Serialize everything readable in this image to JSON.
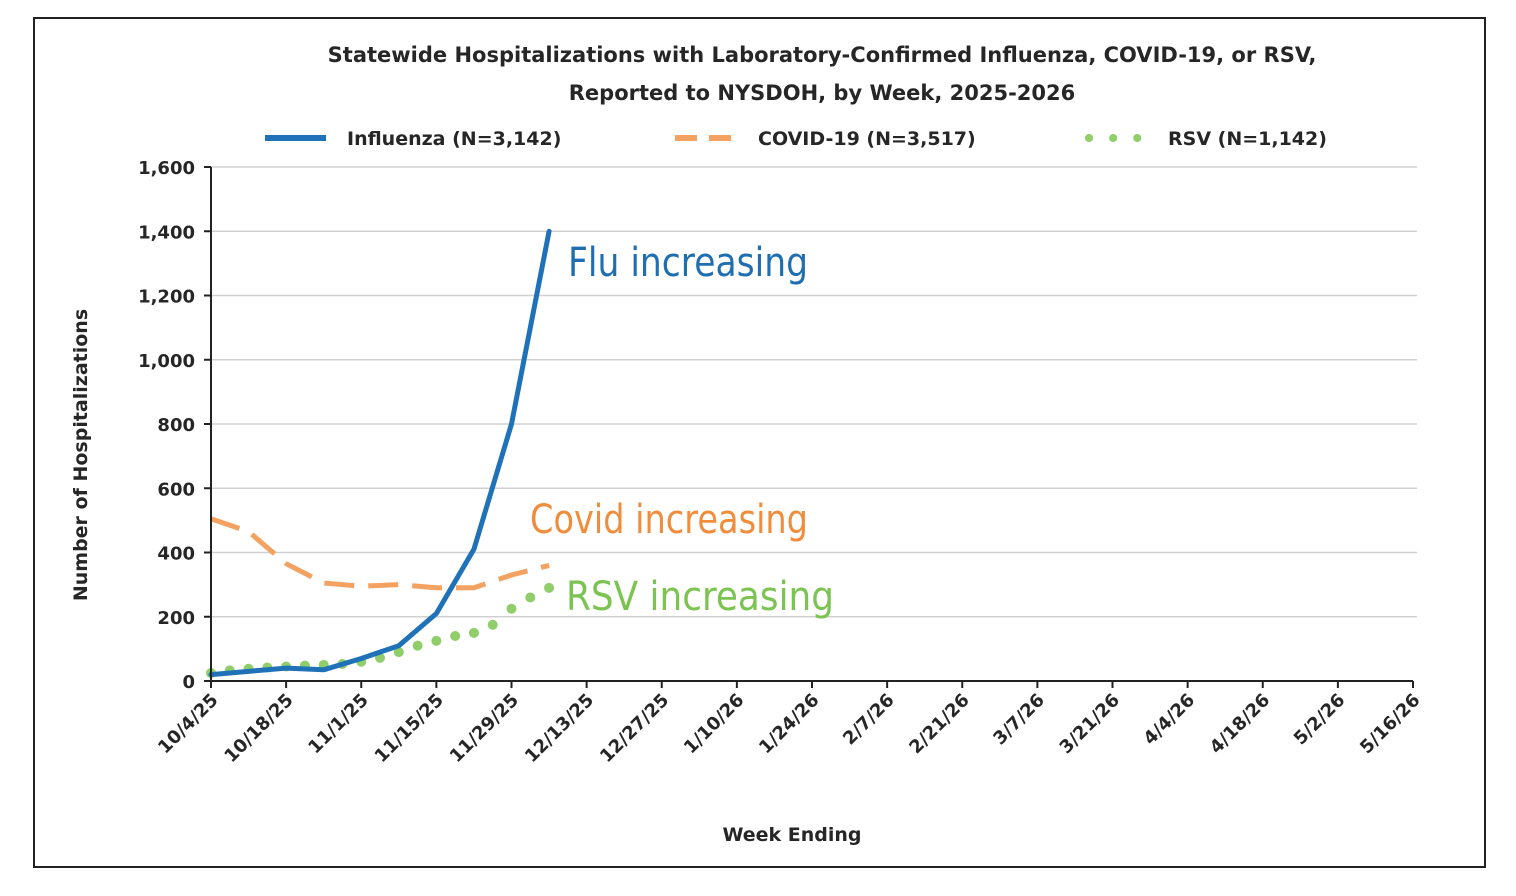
{
  "chart_data": {
    "type": "line",
    "title": [
      "Statewide Hospitalizations with Laboratory-Confirmed  Influenza, COVID-19, or RSV,",
      "Reported to NYSDOH, by Week, 2025-2026"
    ],
    "xlabel": "Week Ending",
    "ylabel": "Number of Hospitalizations",
    "ylim": [
      0,
      1600
    ],
    "yticks": [
      0,
      200,
      400,
      600,
      800,
      1000,
      1200,
      1400,
      1600
    ],
    "ytick_labels": [
      "0",
      "200",
      "400",
      "600",
      "800",
      "1,000",
      "1,200",
      "1,400",
      "1,600"
    ],
    "x_tick_labels": [
      "10/4/25",
      "10/18/25",
      "11/1/25",
      "11/15/25",
      "11/29/25",
      "12/13/25",
      "12/27/25",
      "1/10/26",
      "1/24/26",
      "2/7/26",
      "2/21/26",
      "3/7/26",
      "3/21/26",
      "4/4/26",
      "4/18/26",
      "5/2/26",
      "5/16/26"
    ],
    "x_tick_week_index": [
      0,
      2,
      4,
      6,
      8,
      10,
      12,
      14,
      16,
      18,
      20,
      22,
      24,
      26,
      28,
      30,
      32
    ],
    "x_weeks_total": 32,
    "grid": true,
    "legend_position": "top",
    "series": [
      {
        "name": "Influenza (N=3,142)",
        "style": "solid",
        "color": "#1f72b8",
        "x": [
          0,
          1,
          2,
          3,
          4,
          5,
          6,
          7,
          8,
          9
        ],
        "values": [
          20,
          30,
          40,
          35,
          70,
          110,
          210,
          410,
          800,
          1400
        ]
      },
      {
        "name": "COVID-19 (N=3,517)",
        "style": "dashed",
        "color": "#f4a261",
        "x": [
          0,
          1,
          2,
          3,
          4,
          5,
          6,
          7,
          8,
          9
        ],
        "values": [
          505,
          465,
          365,
          305,
          295,
          300,
          290,
          290,
          330,
          360
        ]
      },
      {
        "name": "RSV (N=1,142)",
        "style": "dotted",
        "color": "#8fce6a",
        "x": [
          0,
          0.5,
          1,
          1.5,
          2,
          2.5,
          3,
          3.5,
          4,
          4.5,
          5,
          5.5,
          6,
          6.5,
          7,
          7.5,
          8,
          8.5,
          9
        ],
        "values": [
          25,
          33,
          38,
          42,
          45,
          48,
          50,
          53,
          60,
          72,
          90,
          110,
          125,
          140,
          150,
          175,
          225,
          260,
          290
        ]
      }
    ],
    "annotations": [
      {
        "text": "Flu increasing",
        "color": "#1f6fb0"
      },
      {
        "text": "Covid increasing",
        "color": "#f08d3c"
      },
      {
        "text": "RSV increasing",
        "color": "#7cc451"
      }
    ]
  }
}
